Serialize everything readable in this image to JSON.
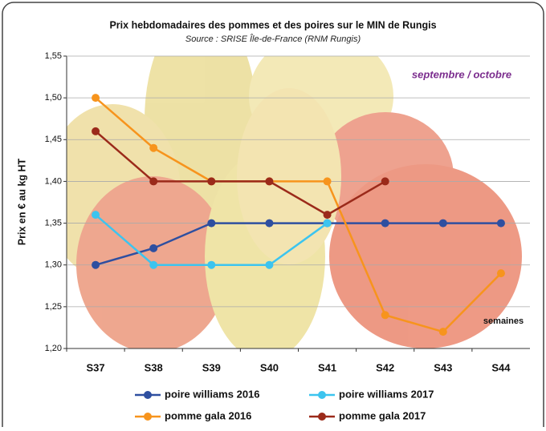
{
  "chart_data": {
    "type": "line",
    "title": "Prix hebdomadaires des pommes et des poires sur le MIN de Rungis",
    "subtitle": "Source : SRISE Île-de-France (RNM Rungis)",
    "y_label": "Prix en € au kg HT",
    "annotations": [
      "septembre / octobre",
      "semaines"
    ],
    "categories": [
      "S37",
      "S38",
      "S39",
      "S40",
      "S41",
      "S42",
      "S43",
      "S44"
    ],
    "series": [
      {
        "name": "poire williams 2016",
        "color": "#2e4fa0",
        "values": [
          1.3,
          1.32,
          1.35,
          1.35,
          1.35,
          1.35,
          1.35,
          1.35
        ]
      },
      {
        "name": "poire williams 2017",
        "color": "#3cc4ef",
        "values": [
          1.36,
          1.3,
          1.3,
          1.3,
          1.35,
          null,
          null,
          null
        ]
      },
      {
        "name": "pomme gala 2016",
        "color": "#f7941d",
        "values": [
          1.5,
          1.44,
          1.4,
          1.4,
          1.4,
          1.24,
          1.22,
          1.29
        ]
      },
      {
        "name": "pomme gala 2017",
        "color": "#9b2a1a",
        "values": [
          1.46,
          1.4,
          1.4,
          1.4,
          1.36,
          1.4,
          null,
          null
        ]
      }
    ],
    "ylim": [
      1.2,
      1.55
    ],
    "yticks": [
      {
        "value": 1.2,
        "label": "1,20"
      },
      {
        "value": 1.25,
        "label": "1,25"
      },
      {
        "value": 1.3,
        "label": "1,30"
      },
      {
        "value": 1.35,
        "label": "1,35"
      },
      {
        "value": 1.4,
        "label": "1,40"
      },
      {
        "value": 1.45,
        "label": "1,45"
      },
      {
        "value": 1.5,
        "label": "1,50"
      },
      {
        "value": 1.55,
        "label": "1,55"
      }
    ],
    "grid": true
  }
}
